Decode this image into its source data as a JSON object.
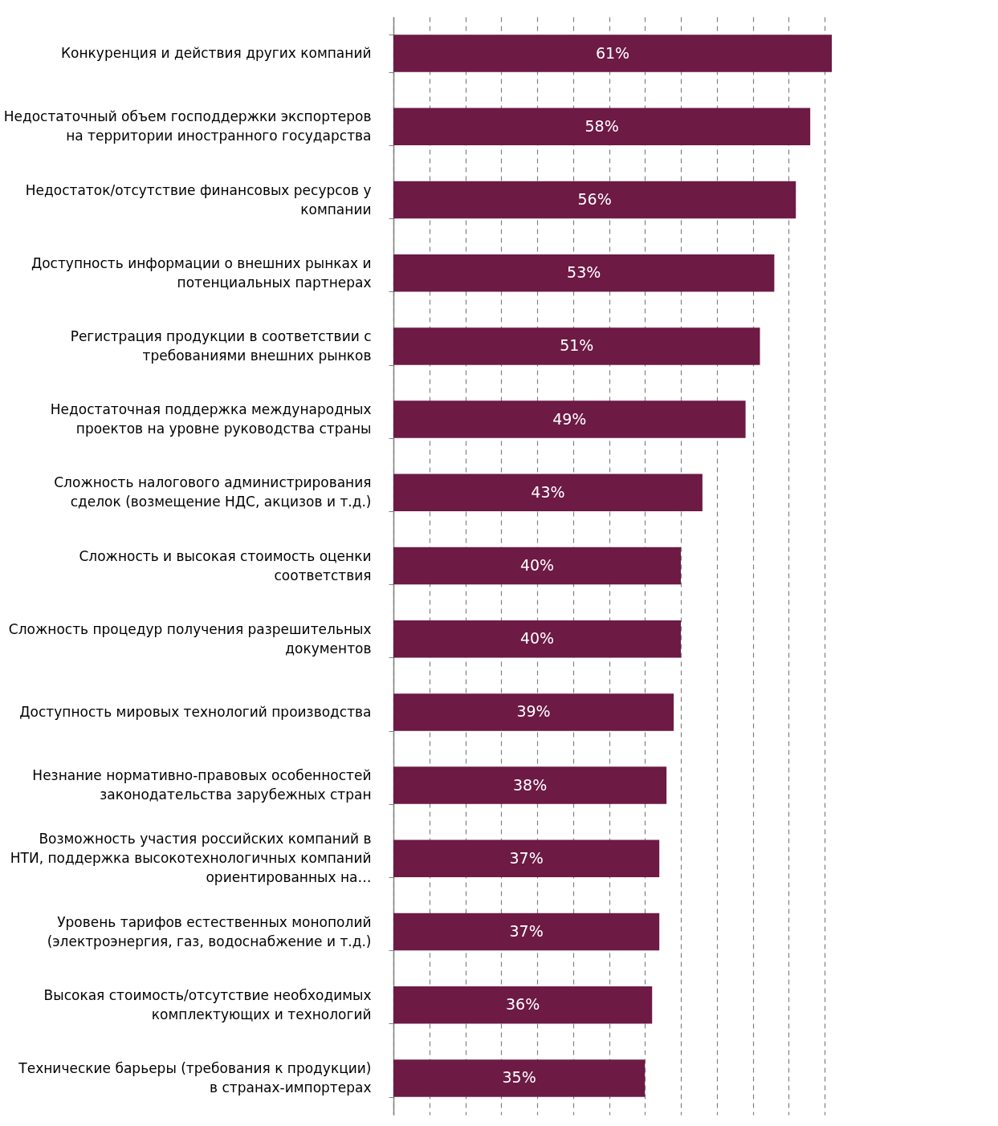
{
  "chart_data": {
    "type": "bar",
    "orientation": "horizontal",
    "categories": [
      "Конкуренция и действия других компаний",
      "Недостаточный объем господдержки экспортеров на территории иностранного государства",
      "Недостаток/отсутствие финансовых ресурсов у компании",
      "Доступность информации о внешних рынках и потенциальных партнерах",
      "Регистрация продукции в соответствии с требованиями внешних рынков",
      "Недостаточная поддержка международных проектов на уровне руководства страны",
      "Сложность налогового администрирования сделок (возмещение НДС, акцизов и т.д.)",
      "Сложность и высокая стоимость оценки соответствия",
      "Сложность процедур получения разрешительных документов",
      "Доступность мировых технологий производства",
      "Незнание нормативно-правовых особенностей законодательства зарубежных стран",
      "Возможность участия российских компаний в НТИ, поддержка высокотехнологичных компаний ориентированных на…",
      "Уровень тарифов естественных монополий (электроэнергия, газ, водоснабжение и т.д.)",
      "Высокая стоимость/отсутствие необходимых комплектующих и технологий",
      "Технические барьеры (требования к продукции) в странах-импортерах"
    ],
    "values": [
      61,
      58,
      56,
      53,
      51,
      49,
      43,
      40,
      40,
      39,
      38,
      37,
      37,
      36,
      35
    ],
    "value_labels": [
      "61%",
      "58%",
      "56%",
      "53%",
      "51%",
      "49%",
      "43%",
      "40%",
      "40%",
      "39%",
      "38%",
      "37%",
      "37%",
      "36%",
      "35%"
    ],
    "color": "#6d1a45",
    "xlim": [
      0,
      61
    ],
    "grid": "x",
    "tick_labels": "y"
  }
}
